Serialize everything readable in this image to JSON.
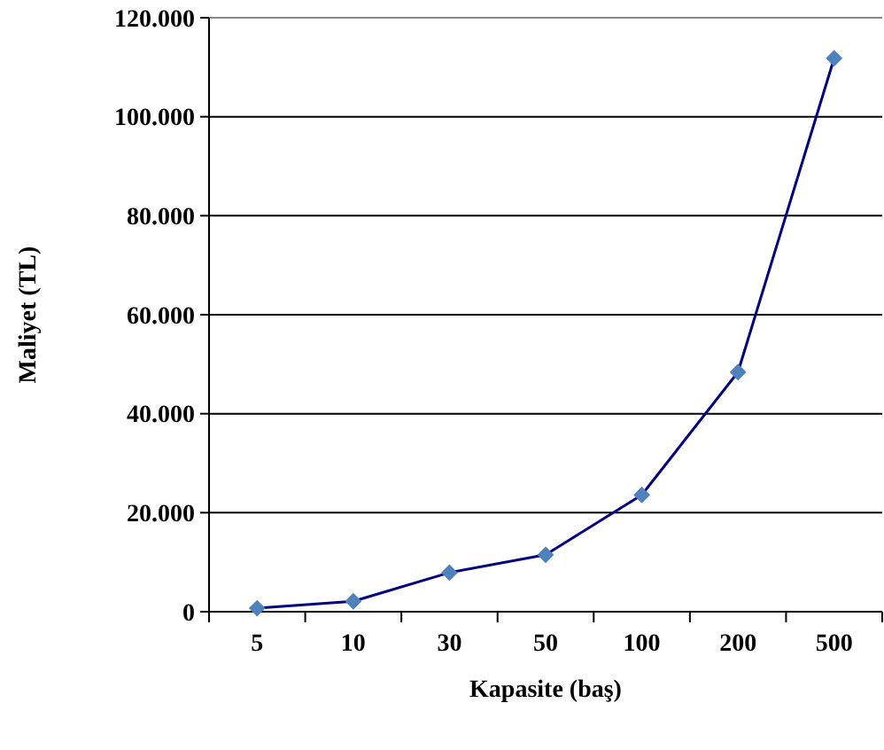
{
  "chart_data": {
    "type": "line",
    "xlabel": "Kapasite (baş)",
    "ylabel": "Maliyet (TL)",
    "categories": [
      "5",
      "10",
      "30",
      "50",
      "100",
      "200",
      "500"
    ],
    "series": [
      {
        "color": "#000080",
        "values": [
          700,
          2100,
          7900,
          11500,
          23600,
          48400,
          111800
        ]
      }
    ],
    "ylim": [
      0,
      120000
    ],
    "yticks": [
      0,
      {
        "value": 20000,
        "label": "20.000"
      },
      {
        "value": 40000,
        "label": "40.000"
      },
      {
        "value": 60000,
        "label": "60.000"
      },
      {
        "value": 80000,
        "label": "80.000"
      },
      {
        "value": 100000,
        "label": "100.000"
      },
      {
        "value": 120000,
        "label": "120.000"
      }
    ],
    "grid": "y",
    "marker": "diamond",
    "line_style": "solid"
  }
}
